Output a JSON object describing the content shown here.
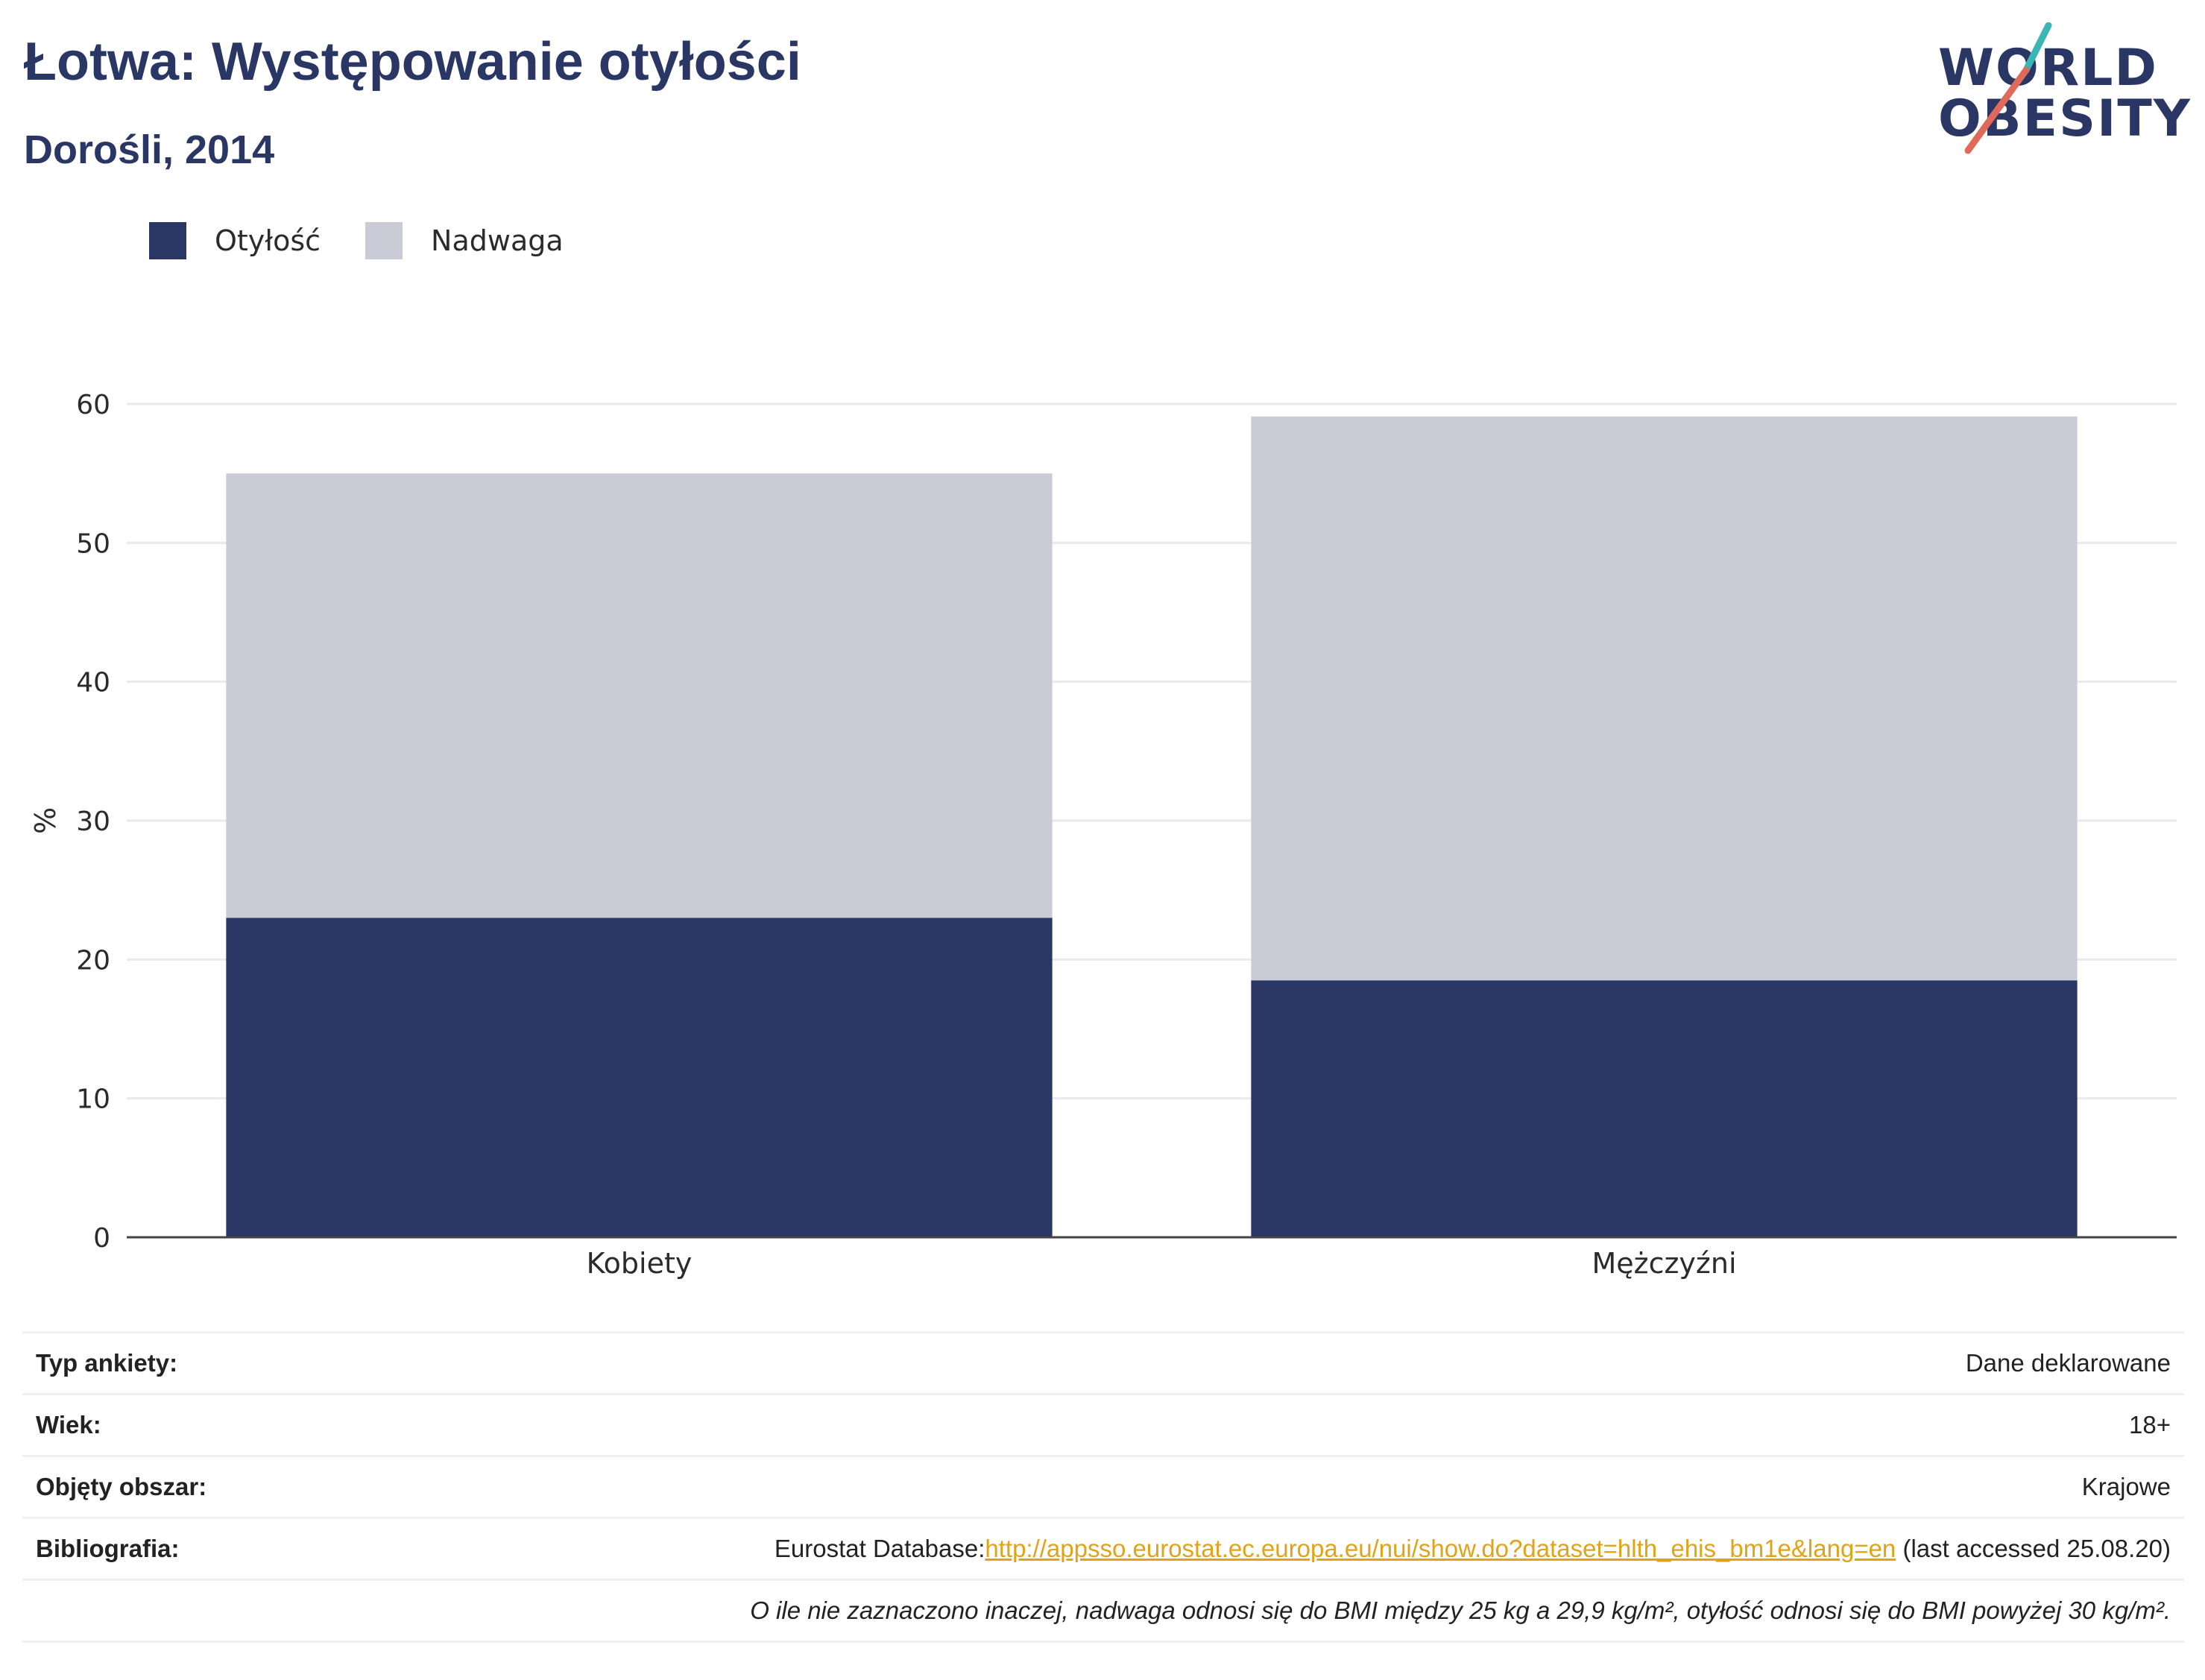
{
  "header": {
    "title": "Łotwa: Występowanie otyłości",
    "subtitle": "Dorośli, 2014"
  },
  "logo": {
    "line1": "WORLD",
    "line2": "OBESITY",
    "colors": [
      "#2a3663",
      "#3ab6b7",
      "#e06a5a"
    ]
  },
  "legend": {
    "items": [
      {
        "label": "Otyłość",
        "color": "#2a3663"
      },
      {
        "label": "Nadwaga",
        "color": "#cacbd7"
      }
    ]
  },
  "chart_data": {
    "type": "bar",
    "stacked": true,
    "categories": [
      "Kobiety",
      "Mężczyźni"
    ],
    "series": [
      {
        "name": "Otyłość",
        "color": "#2a3663",
        "values": [
          23.0,
          18.5
        ]
      },
      {
        "name": "Nadwaga",
        "color": "#cacbd7",
        "values": [
          32.0,
          40.6
        ]
      }
    ],
    "ylabel": "%",
    "ylim": [
      0,
      60
    ],
    "yticks": [
      0,
      10,
      20,
      30,
      40,
      50,
      60
    ],
    "grid": true,
    "legend_position": "top-left"
  },
  "meta": {
    "rows": [
      {
        "key": "Typ ankiety:",
        "value": "Dane deklarowane"
      },
      {
        "key": "Wiek:",
        "value": "18+"
      },
      {
        "key": "Objęty obszar:",
        "value": "Krajowe"
      }
    ],
    "bibliography": {
      "key": "Bibliografia:",
      "prefix": "Eurostat Database:",
      "link": "http://appsso.eurostat.ec.europa.eu/nui/show.do?dataset=hlth_ehis_bm1e&lang=en",
      "suffix": " (last accessed 25.08.20)"
    },
    "note": "O ile nie zaznaczono inaczej, nadwaga odnosi się do BMI między 25 kg a 29,9 kg/m², otyłość odnosi się do BMI powyżej 30 kg/m²."
  }
}
